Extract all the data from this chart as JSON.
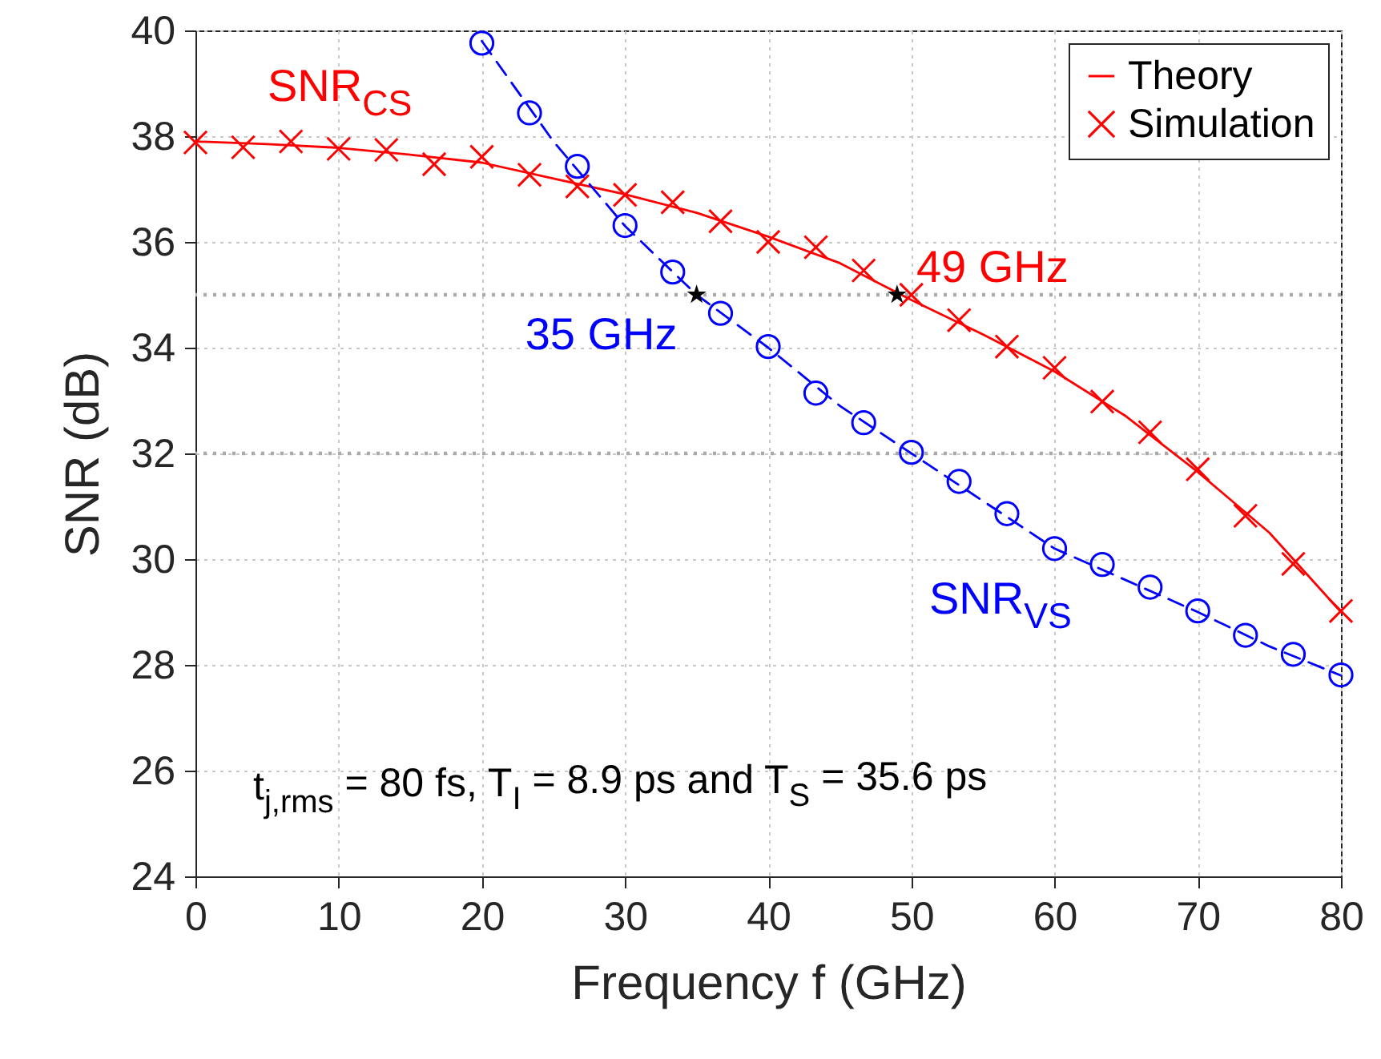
{
  "chart_data": {
    "type": "line",
    "xlabel": "Frequency f (GHz)",
    "ylabel": "SNR (dB)",
    "xlim": [
      0,
      80
    ],
    "xticks": [
      0,
      10,
      20,
      30,
      40,
      50,
      60,
      70,
      80
    ],
    "ylim": [
      24,
      40
    ],
    "yticks": [
      24,
      26,
      28,
      30,
      32,
      34,
      36,
      38,
      40
    ],
    "grid": true,
    "legend": "top right",
    "series": [
      {
        "name": "Theory",
        "color": "#ff0000",
        "line_style": "solid",
        "marker": "none",
        "x": [
          0,
          5,
          10,
          15,
          20,
          25,
          30,
          35,
          40,
          45,
          50,
          55,
          60,
          65,
          70,
          75,
          80
        ],
        "values": [
          37.9,
          37.85,
          37.78,
          37.65,
          37.5,
          37.2,
          36.9,
          36.55,
          36.1,
          35.6,
          34.9,
          34.25,
          33.55,
          32.7,
          31.65,
          30.5,
          29.0
        ]
      },
      {
        "color": "#0000ff",
        "line_style": "dashed",
        "marker": "none",
        "x": [
          20,
          25,
          30,
          35,
          40,
          45,
          50,
          55,
          60,
          65,
          70,
          75,
          80
        ],
        "values": [
          39.8,
          37.9,
          36.3,
          35.0,
          34.0,
          32.9,
          32.0,
          31.1,
          30.2,
          29.6,
          29.0,
          28.35,
          27.8
        ]
      },
      {
        "name": "Simulation",
        "type": "scatter",
        "color": "#ff0000",
        "marker": "cross",
        "x": [
          0,
          3.33,
          6.67,
          10,
          13.33,
          16.67,
          20,
          23.33,
          26.67,
          30,
          33.33,
          36.67,
          40,
          43.33,
          46.67,
          50,
          53.33,
          56.67,
          60,
          63.33,
          66.67,
          70,
          73.33,
          76.67,
          80
        ],
        "values": [
          37.88,
          37.79,
          37.9,
          37.76,
          37.74,
          37.47,
          37.61,
          37.27,
          37.05,
          36.89,
          36.75,
          36.39,
          36.0,
          35.9,
          35.46,
          35.0,
          34.52,
          34.02,
          33.62,
          32.98,
          32.4,
          31.7,
          30.82,
          29.91,
          29.02
        ]
      },
      {
        "type": "scatter",
        "color": "#0000ff",
        "marker": "circle",
        "x": [
          20,
          23.33,
          26.67,
          30,
          33.33,
          36.67,
          40,
          43.33,
          46.67,
          50,
          53.33,
          56.67,
          60,
          63.33,
          66.67,
          70,
          73.33,
          76.67,
          80
        ],
        "values": [
          39.76,
          38.44,
          37.43,
          36.31,
          35.43,
          34.65,
          34.02,
          33.14,
          32.58,
          32.02,
          31.47,
          30.86,
          30.2,
          29.9,
          29.47,
          29.02,
          28.56,
          28.2,
          27.81
        ]
      },
      {
        "type": "scatter",
        "color": "#000000",
        "marker": "star",
        "x": [
          35,
          49
        ],
        "values": [
          35,
          35
        ]
      }
    ],
    "ref_lines": [
      {
        "axis": "y",
        "value": 35,
        "color": "#aaaaaa",
        "line_style": "dotted"
      },
      {
        "axis": "y",
        "value": 32,
        "color": "#aaaaaa",
        "line_style": "dotted"
      }
    ],
    "annotations": [
      "SNR$_{CS}$",
      {
        "text": "35 GHz",
        "x": 35,
        "y": 35
      },
      {
        "text": "49 GHz",
        "x": 49,
        "y": 35
      },
      "SNR$_{VS}$",
      "t$_{j,rms}$ = 80 fs, T$_{I}$ = 8.9 ps and T$_{S}$ = 35.6 ps"
    ]
  }
}
